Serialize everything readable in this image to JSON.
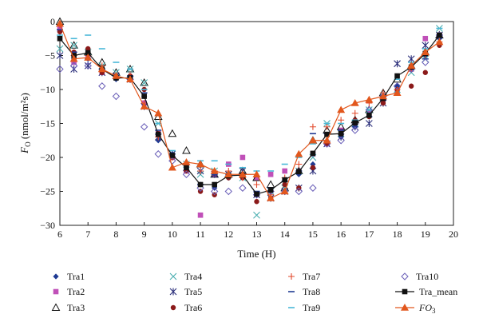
{
  "chart_data": {
    "type": "scatter",
    "xlabel": "Time (H)",
    "ylabel_main": "F",
    "ylabel_sub": "O",
    "ylabel_unit": " (nmol/m²s)",
    "xlim": [
      6,
      20
    ],
    "ylim": [
      -30,
      0
    ],
    "xticks": [
      6,
      7,
      8,
      9,
      10,
      11,
      12,
      13,
      14,
      15,
      16,
      17,
      18,
      19,
      20
    ],
    "yticks": [
      0,
      -5,
      -10,
      -15,
      -20,
      -25,
      -30
    ],
    "x": [
      6,
      6.5,
      7,
      7.5,
      8,
      8.5,
      9,
      9.5,
      10,
      10.5,
      11,
      11.5,
      12,
      12.5,
      13,
      13.5,
      14,
      14.5,
      15,
      15.5,
      16,
      16.5,
      17,
      17.5,
      18,
      18.5,
      19,
      19.5
    ],
    "series": [
      {
        "name": "Tra1",
        "marker": "diamond-filled",
        "color": "#1f3a93",
        "values": [
          -1.5,
          -5.5,
          -5.5,
          -7,
          -8.5,
          -8.5,
          -11,
          -17.5,
          -19.5,
          -21.5,
          -24,
          -24.5,
          -23,
          -22.5,
          -25.5,
          -25,
          -23.5,
          -22.5,
          -21,
          -18,
          -17,
          -15.5,
          -14,
          -11.5,
          -9.5,
          -7,
          -5,
          -2.5
        ]
      },
      {
        "name": "Tra2",
        "marker": "square-filled",
        "color": "#c050b8",
        "values": [
          -1,
          -6,
          -5,
          -7.5,
          -8,
          -8.5,
          -12,
          -16.5,
          -20,
          -22,
          -28.5,
          -22.5,
          -21,
          -20,
          -23,
          -22.5,
          -22,
          -22,
          -19.5,
          -18,
          -16,
          -15,
          -13.5,
          -11,
          -10.5,
          -7,
          -2.5,
          -2
        ]
      },
      {
        "name": "Tra3",
        "marker": "triangle-open",
        "color": "#111111",
        "values": [
          0,
          -3.5,
          -4.5,
          -6,
          -7.5,
          -7,
          -9,
          -14,
          -16.5,
          -19,
          -21,
          -22.5,
          -22.5,
          -22,
          -23,
          -24,
          -24.5,
          -22,
          -17.5,
          -16,
          -15.5,
          -14.5,
          -13,
          -10.5,
          -8.5,
          -6.5,
          -4.5,
          -2
        ]
      },
      {
        "name": "Tra4",
        "marker": "x",
        "color": "#49aeb0",
        "values": [
          -4,
          -3.5,
          -4.5,
          -6.5,
          -7.5,
          -7,
          -9,
          -15,
          -19.5,
          -21,
          -22.5,
          -22,
          -22.5,
          -23,
          -28.5,
          -25,
          -24.5,
          -22,
          -20,
          -15,
          -16.5,
          -15,
          -13,
          -11,
          -10,
          -7.5,
          -5.5,
          -1
        ]
      },
      {
        "name": "Tra5",
        "marker": "star",
        "color": "#2a2e7a",
        "values": [
          -5,
          -7,
          -6.5,
          -7.5,
          -8,
          -8.5,
          -12.5,
          -17,
          -19.5,
          -21.5,
          -22,
          -22.5,
          -22.5,
          -22,
          -25.5,
          -26,
          -25,
          -24.5,
          -22,
          -18,
          -17,
          -15.5,
          -15,
          -12,
          -6.2,
          -5.5,
          -3.5,
          -2
        ]
      },
      {
        "name": "Tra6",
        "marker": "circle-filled",
        "color": "#8b1a1a",
        "values": [
          -1.5,
          -4.5,
          -4,
          -7.5,
          -8,
          -8,
          -10,
          -16.5,
          -20,
          -22,
          -25,
          -25.5,
          -23,
          -23,
          -26.5,
          -26,
          -24,
          -24.5,
          -21.5,
          -18,
          -16.5,
          -14.5,
          -14,
          -12,
          -10,
          -9.5,
          -7.5,
          -3.5
        ]
      },
      {
        "name": "Tra7",
        "marker": "plus",
        "color": "#e2482a",
        "values": [
          -0.5,
          -5,
          -5,
          -6.5,
          -8,
          -8,
          -12,
          -17,
          -20,
          -21,
          -22,
          -22,
          -22,
          -23,
          -24,
          -25.5,
          -23,
          -21,
          -15.5,
          -15.5,
          -14.5,
          -13.5,
          -12,
          -10.5,
          -10,
          -7,
          -5,
          -3
        ]
      },
      {
        "name": "Tra8",
        "marker": "dash",
        "color": "#1f3a93",
        "values": [
          -1.2,
          -4.5,
          -5.5,
          -7,
          -8,
          -8,
          -10.5,
          -16,
          -19.5,
          -21,
          -24,
          -22.5,
          -22.5,
          -22.5,
          -25,
          -24.5,
          -23.5,
          -22,
          -16.5,
          -16.5,
          -16,
          -15.5,
          -14,
          -11.5,
          -9.5,
          -7,
          -5.5,
          -2
        ]
      },
      {
        "name": "Tra9",
        "marker": "dash",
        "color": "#49b8d8",
        "values": [
          -2,
          -2.5,
          -2,
          -4,
          -6,
          -7,
          -10,
          -15,
          -19,
          -21,
          -20.5,
          -20.5,
          -21,
          -21.5,
          -22,
          -22,
          -21,
          -20,
          -18,
          -15,
          -15,
          -14.5,
          -13,
          -11,
          -8.5,
          -6,
          -4,
          -1
        ]
      },
      {
        "name": "Tra10",
        "marker": "diamond-open",
        "color": "#6a5fb8",
        "values": [
          -7,
          -6.5,
          -6.5,
          -9.5,
          -11,
          -8.5,
          -15.5,
          -19.5,
          -20.5,
          -22.5,
          -24.5,
          -25,
          -25,
          -24.5,
          -25.5,
          -25,
          -25,
          -25,
          -24.5,
          -18,
          -17.5,
          -16,
          -13,
          -11,
          -9.5,
          -7,
          -6,
          -2
        ]
      },
      {
        "name": "Tra_mean",
        "marker": "square-filled",
        "line": true,
        "color": "#111111",
        "values": [
          -2.5,
          -5,
          -4.6,
          -7,
          -8.3,
          -8.3,
          -11,
          -16.6,
          -19.7,
          -21.5,
          -24,
          -24,
          -22.7,
          -22.6,
          -25.4,
          -24.8,
          -23.3,
          -22.1,
          -19.4,
          -16.6,
          -16.5,
          -14.9,
          -13.8,
          -11.3,
          -8,
          -6.7,
          -4.7,
          -2
        ]
      },
      {
        "name": "FO",
        "name_sub": "3",
        "marker": "triangle-filled",
        "line": true,
        "color": "#e2571d",
        "values": [
          -0.3,
          -5.5,
          -5.3,
          -7,
          -8,
          -8.5,
          -12.5,
          -13.5,
          -21.5,
          -20.7,
          -21,
          -22,
          -22.5,
          -22.5,
          -22.5,
          -26,
          -25,
          -19.5,
          -17.5,
          -17.5,
          -13,
          -12,
          -11.5,
          -11,
          -10.5,
          -6.5,
          -4.5,
          -3
        ]
      }
    ],
    "legend": {
      "placement": "bottom",
      "columns": 4
    }
  }
}
